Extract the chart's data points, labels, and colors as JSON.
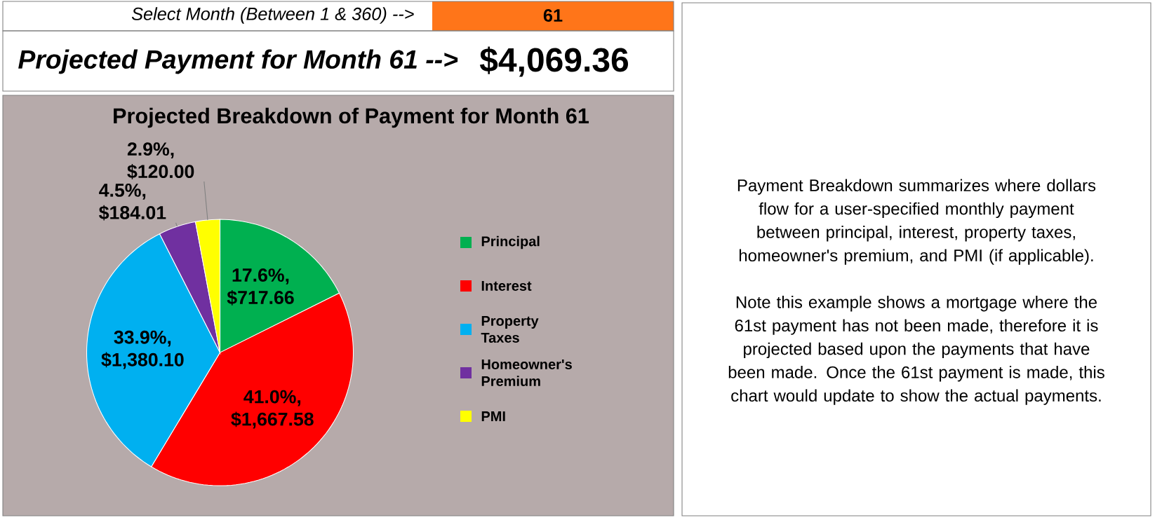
{
  "chart_data": {
    "type": "pie",
    "title": "Projected Breakdown of Payment for Month 61",
    "categories": [
      "Principal",
      "Interest",
      "Property Taxes",
      "Homeowner's Premium",
      "PMI"
    ],
    "values": [
      717.66,
      1667.58,
      1380.1,
      184.01,
      120.0
    ],
    "value_labels": [
      "17.6%, $717.66",
      "41.0%, $1,667.58",
      "33.9%, $1,380.10",
      "4.5%, $184.01",
      "2.9%, $120.00"
    ],
    "colors": [
      "#00b050",
      "#ff0000",
      "#00b0f0",
      "#7030a0",
      "#ffff00"
    ],
    "legend": "right",
    "annotations": [
      "Select Month (Between 1 & 360) -->",
      "61",
      "Projected Payment for Month 61 -->",
      "$4,069.36",
      "Payment Breakdown summarizes where dollars flow for a user-specified monthly payment between principal, interest, property taxes, homeowner's premium, and PMI (if applicable).",
      "Note this example shows a mortgage where the 61st payment has not been made, therefore it is projected based upon the payments that have been made.  Once the 61st payment is made, this chart would update to show the actual payments."
    ]
  }
}
